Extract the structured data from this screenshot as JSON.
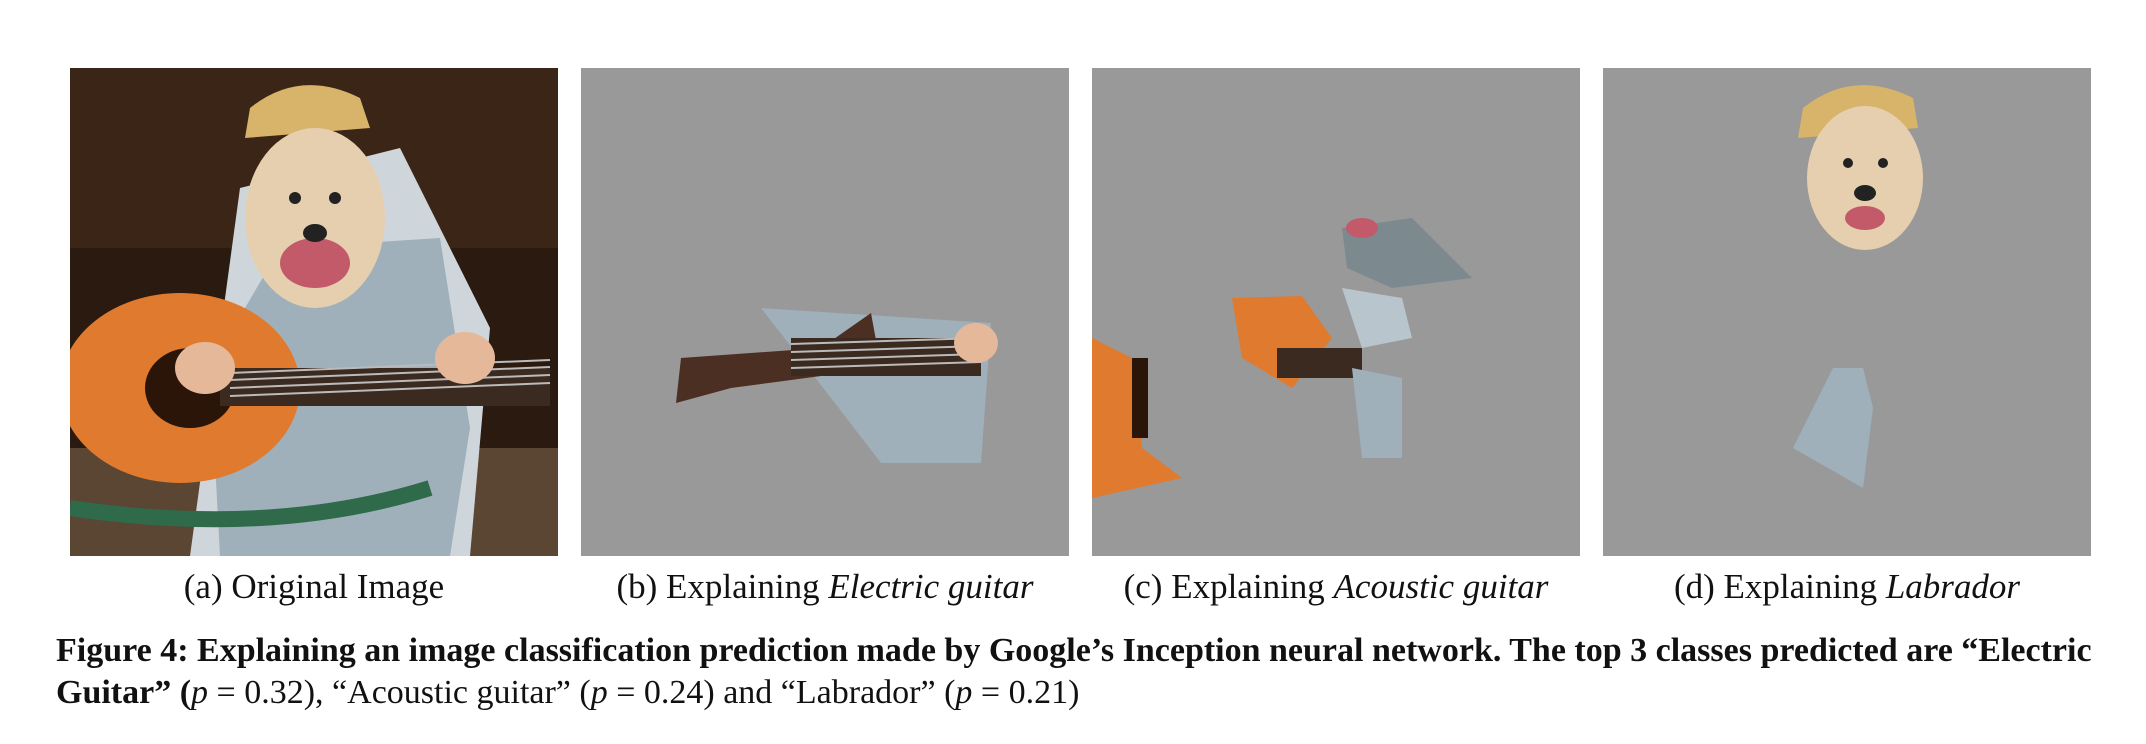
{
  "panels": [
    {
      "id": "a",
      "label": "(a) Original Image",
      "emph": ""
    },
    {
      "id": "b",
      "label": "(b) Explaining ",
      "emph": "Electric guitar"
    },
    {
      "id": "c",
      "label": "(c) Explaining ",
      "emph": "Acoustic guitar"
    },
    {
      "id": "d",
      "label": "(d) Explaining ",
      "emph": "Labrador"
    }
  ],
  "caption": {
    "lead": "Figure 4: Explaining an image classification prediction made by Google’s Inception neural network. The top 3 classes predicted are “Electric Guitar” (",
    "p1": "p",
    "v1": " = 0.32), “Acoustic guitar” (",
    "p2": "p",
    "v2": " = 0.24) and “Labrador” (",
    "p3": "p",
    "v3": " = 0.21)"
  },
  "colors": {
    "mask_gray": "#999999",
    "guitar_orange": "#e07a2e",
    "shirt_blue": "#a9b9c2",
    "fur": "#e6cfae",
    "hat": "#d7b46a"
  }
}
